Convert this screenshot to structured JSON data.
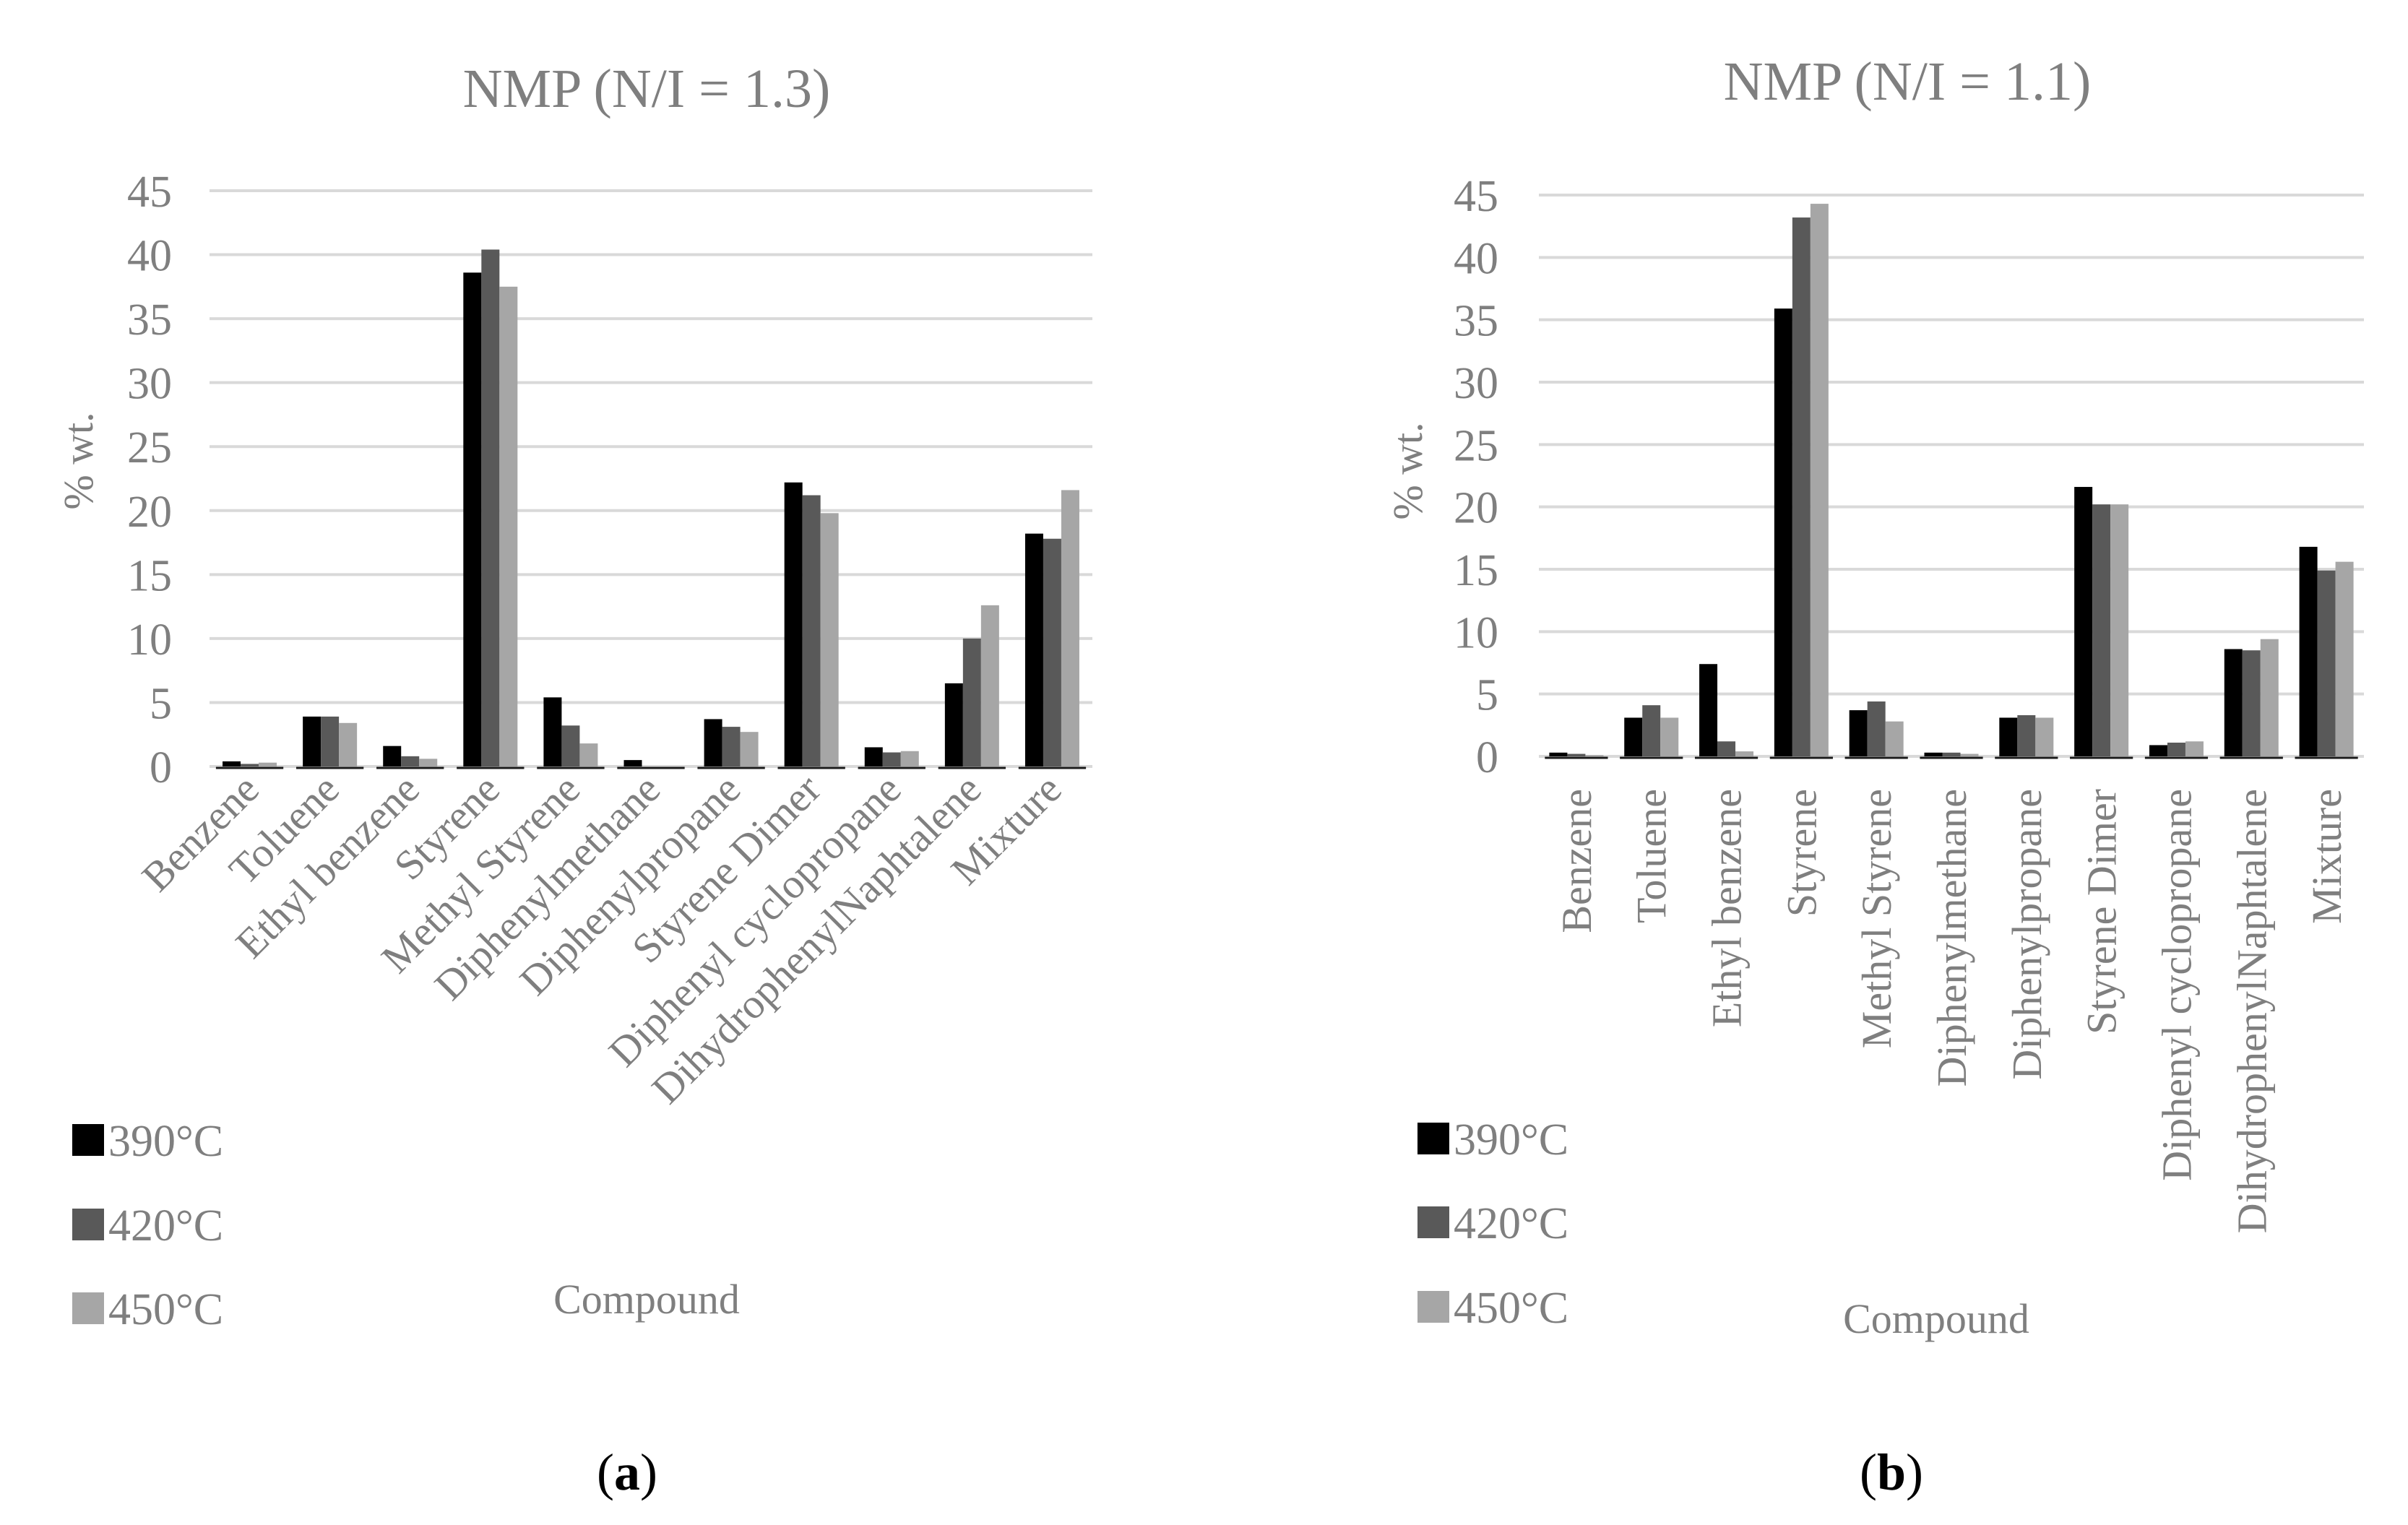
{
  "colors": {
    "t390": "#000000",
    "t420": "#595959",
    "t450": "#a6a6a6",
    "grid": "#d9d9d9",
    "text": "#7f7f7f"
  },
  "chart_data": [
    {
      "type": "bar",
      "title": "NMP (N/I = 1.3)",
      "xlabel": "Compound",
      "ylabel": "% wt.",
      "ylim": [
        0,
        45
      ],
      "yticks": [
        "0",
        "5",
        "10",
        "15",
        "20",
        "25",
        "30",
        "35",
        "40",
        "45"
      ],
      "panel_label": "a",
      "categories": [
        "Benzene",
        "Toluene",
        "Ethyl benzene",
        "Styrene",
        "Methyl Styrene",
        "Diphenylmethane",
        "Diphenylpropane",
        "Styrene Dimer",
        "Diphenyl cyclopropane",
        "DihydrophenylNaphtalene",
        "Mixture"
      ],
      "series": [
        {
          "name": "390°C",
          "values": [
            0.4,
            3.9,
            1.6,
            38.6,
            5.4,
            0.5,
            3.7,
            22.2,
            1.5,
            6.5,
            18.2
          ]
        },
        {
          "name": "420°C",
          "values": [
            0.2,
            3.9,
            0.8,
            40.4,
            3.2,
            0.0,
            3.1,
            21.2,
            1.1,
            10.0,
            17.8
          ]
        },
        {
          "name": "450°C",
          "values": [
            0.3,
            3.4,
            0.6,
            37.5,
            1.8,
            0.0,
            2.7,
            19.8,
            1.2,
            12.6,
            21.6
          ]
        }
      ]
    },
    {
      "type": "bar",
      "title": "NMP (N/I = 1.1)",
      "xlabel": "Compound",
      "ylabel": "% wt.",
      "ylim": [
        0,
        45
      ],
      "yticks": [
        "0",
        "5",
        "10",
        "15",
        "20",
        "25",
        "30",
        "35",
        "40",
        "45"
      ],
      "panel_label": "b",
      "categories": [
        "Benzene",
        "Toluene",
        "Ethyl benzene",
        "Styrene",
        "Methyl Styrene",
        "Diphenylmethane",
        "Diphenylpropane",
        "Styrene Dimer",
        "Diphenyl cyclopropane",
        "DihydrophenylNaphtalene",
        "Mixture"
      ],
      "series": [
        {
          "name": "390°C",
          "values": [
            0.3,
            3.1,
            7.4,
            35.9,
            3.7,
            0.3,
            3.1,
            21.6,
            0.9,
            8.6,
            16.8
          ]
        },
        {
          "name": "420°C",
          "values": [
            0.2,
            4.1,
            1.2,
            43.2,
            4.4,
            0.3,
            3.3,
            20.2,
            1.1,
            8.5,
            14.9
          ]
        },
        {
          "name": "450°C",
          "values": [
            0.1,
            3.1,
            0.4,
            44.3,
            2.8,
            0.2,
            3.1,
            20.2,
            1.2,
            9.4,
            15.6
          ]
        }
      ]
    }
  ]
}
